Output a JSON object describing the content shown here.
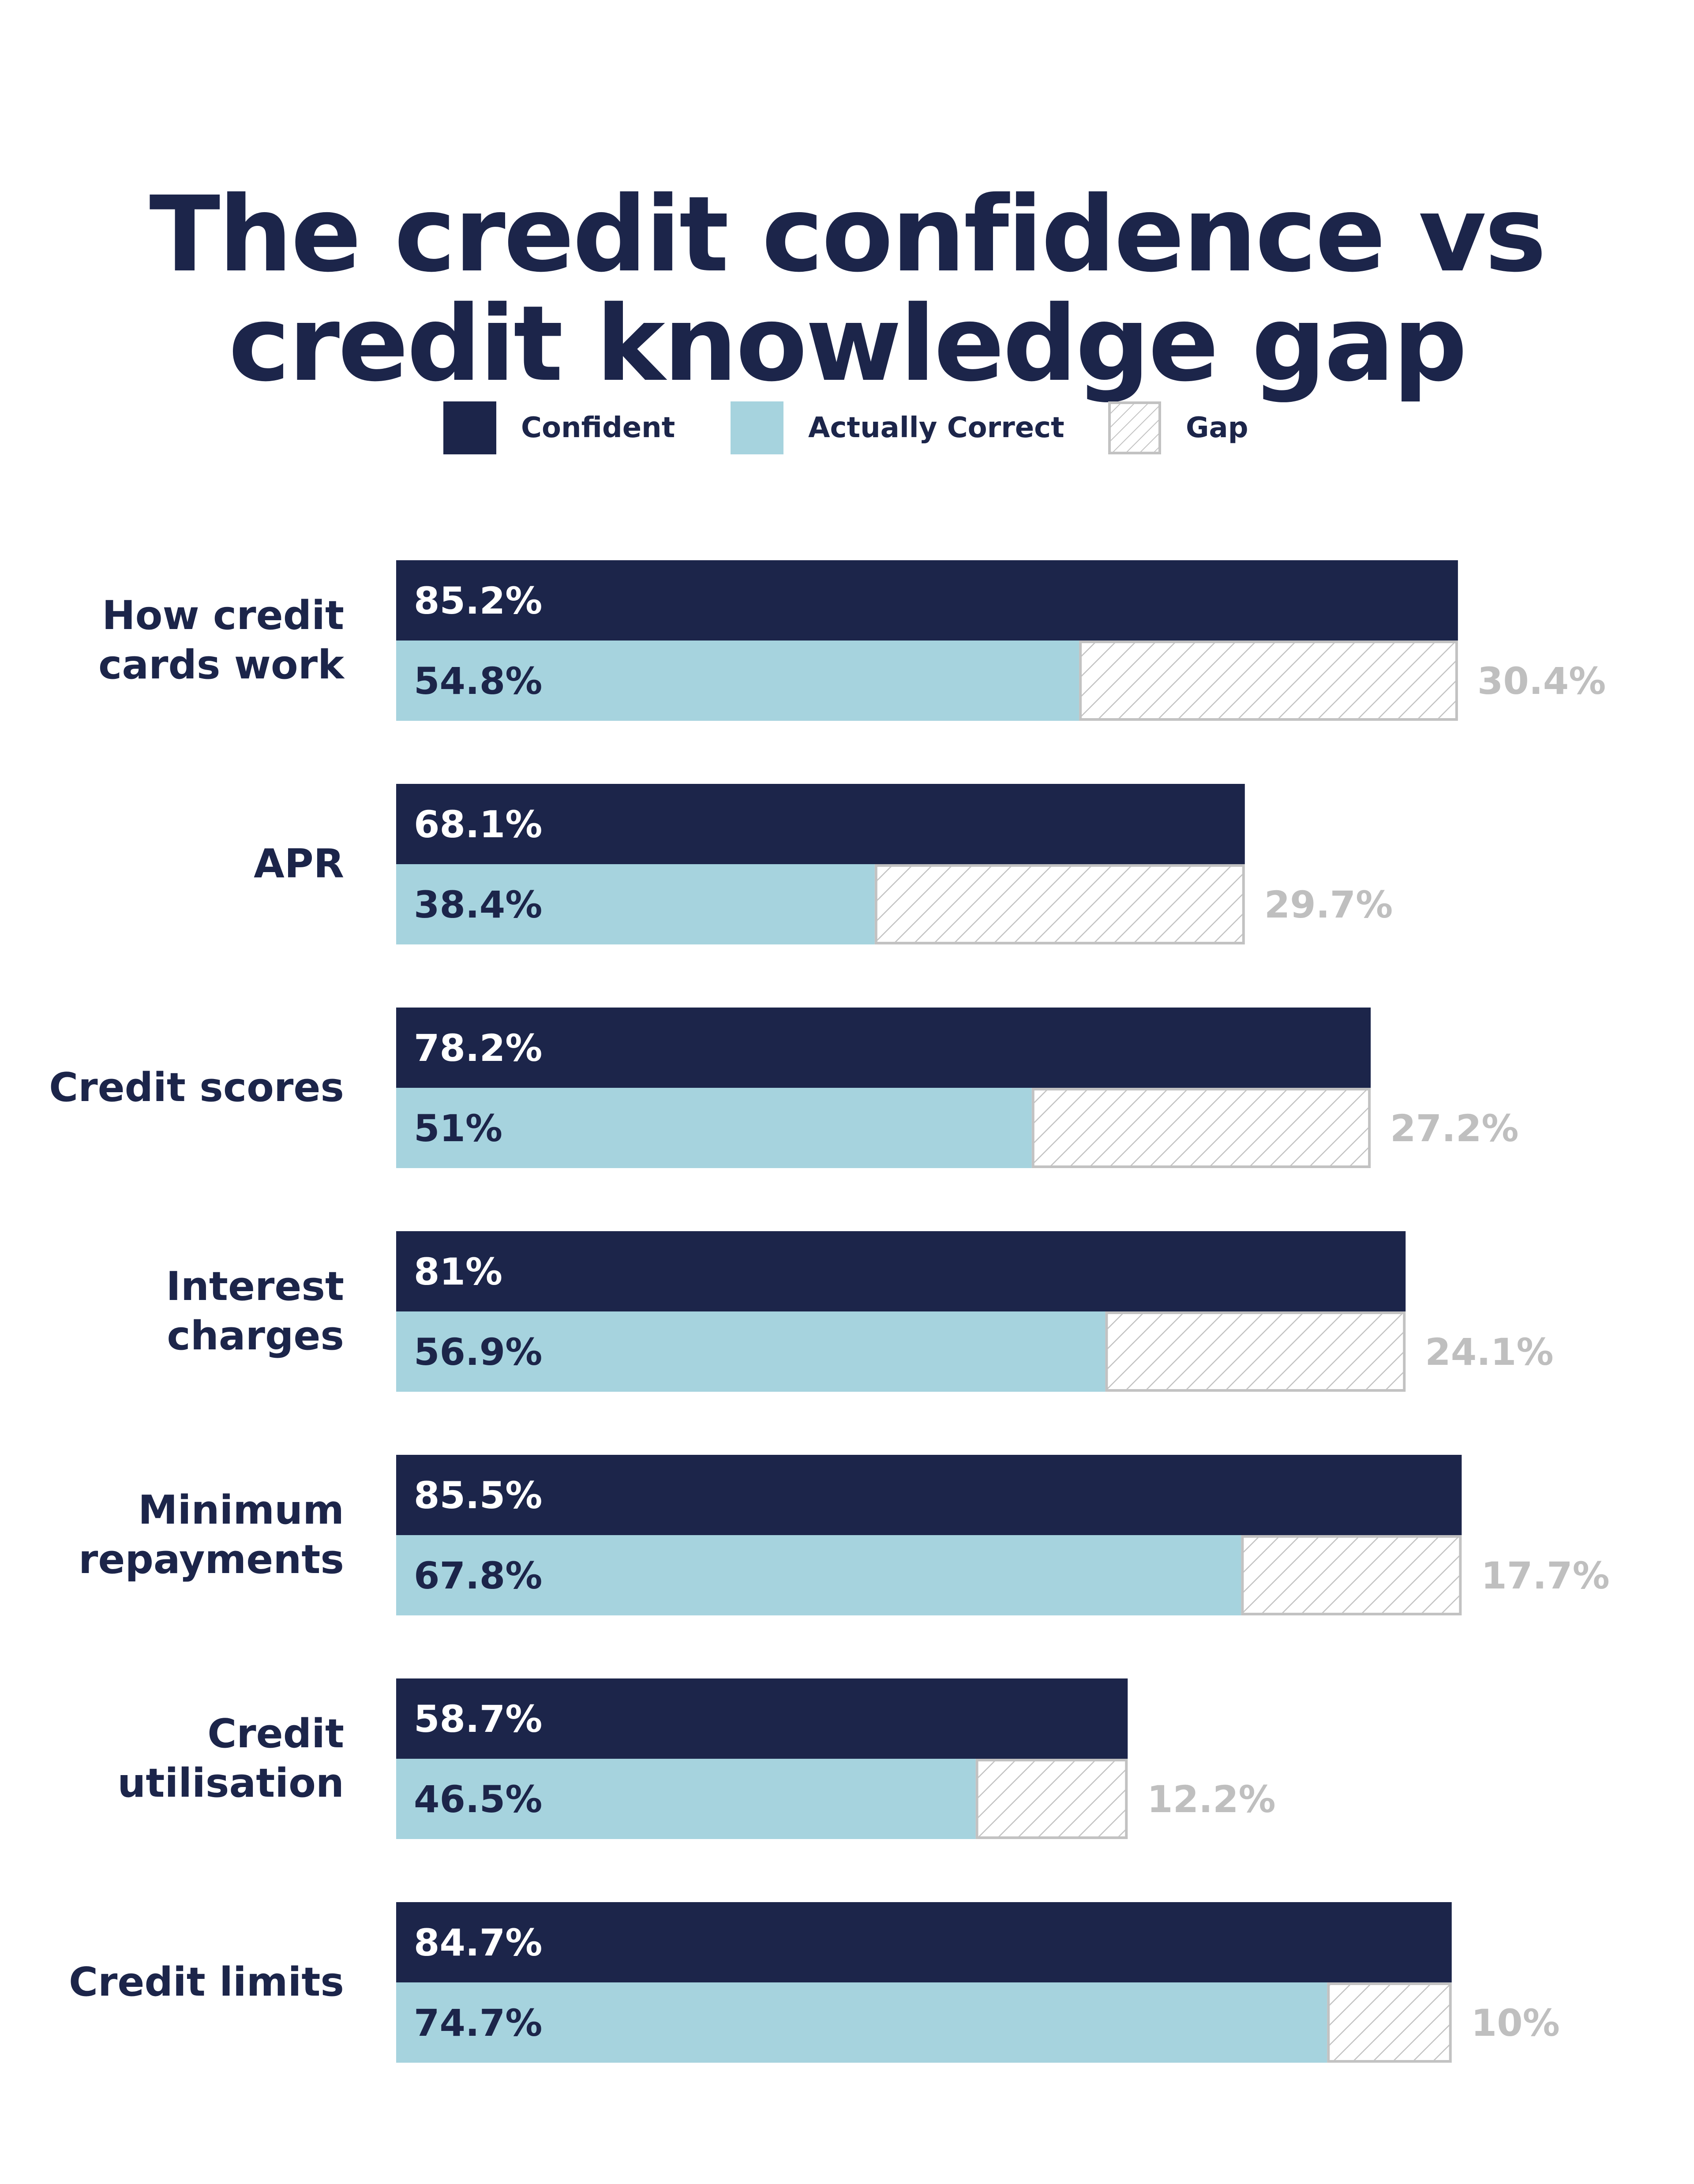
{
  "chart_data": {
    "type": "bar",
    "title": [
      "The credit confidence vs",
      "credit knowledge gap"
    ],
    "legend": [
      {
        "key": "confident",
        "label": "Confident"
      },
      {
        "key": "correct",
        "label": "Actually Correct"
      },
      {
        "key": "gap",
        "label": "Gap"
      }
    ],
    "categories": [
      [
        "How credit",
        "cards work"
      ],
      [
        "APR"
      ],
      [
        "Credit scores"
      ],
      [
        "Interest",
        "charges"
      ],
      [
        "Minimum",
        "repayments"
      ],
      [
        "Credit",
        "utilisation"
      ],
      [
        "Credit limits"
      ]
    ],
    "series": [
      {
        "key": "confident",
        "name": "Confident",
        "values": [
          85.2,
          68.1,
          78.2,
          81,
          85.5,
          58.7,
          84.7
        ],
        "labels": [
          "85.2%",
          "68.1%",
          "78.2%",
          "81%",
          "85.5%",
          "58.7%",
          "84.7%"
        ]
      },
      {
        "key": "correct",
        "name": "Actually Correct",
        "values": [
          54.8,
          38.4,
          51,
          56.9,
          67.8,
          46.5,
          74.7
        ],
        "labels": [
          "54.8%",
          "38.4%",
          "51%",
          "56.9%",
          "67.8%",
          "46.5%",
          "74.7%"
        ]
      },
      {
        "key": "gap",
        "name": "Gap",
        "values": [
          30.4,
          29.7,
          27.2,
          24.1,
          17.7,
          12.2,
          10
        ],
        "labels": [
          "30.4%",
          "29.7%",
          "27.2%",
          "24.1%",
          "17.7%",
          "12.2%",
          "10%"
        ]
      }
    ],
    "orientation": "horizontal",
    "xlim": [
      0,
      100
    ],
    "grid": false,
    "legend_position": "top-center"
  },
  "colors": {
    "confident": "#1c254a",
    "correct": "#a6d3de",
    "gap_hatch": "#c2c2c2",
    "gap_label": "#bfbfbf",
    "text": "#1c254a",
    "inbar_text_dark": "#ffffff",
    "inbar_text_light": "#1c254a"
  }
}
